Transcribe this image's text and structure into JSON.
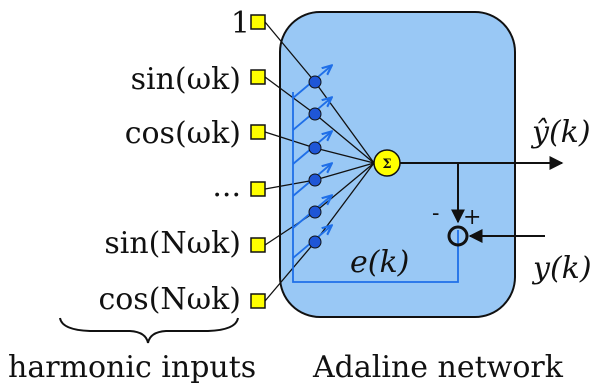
{
  "inputs": [
    {
      "label": "1"
    },
    {
      "label": "sin(ωk)"
    },
    {
      "label": "cos(ωk)"
    },
    {
      "label": "..."
    },
    {
      "label": "sin(Nωk)"
    },
    {
      "label": "cos(Nωk)"
    }
  ],
  "network": {
    "sum_symbol": "Σ",
    "output_label": "ŷ(k)",
    "target_label": "y(k)",
    "error_label": "e(k)",
    "minus_sign": "-",
    "plus_sign": "+"
  },
  "captions": {
    "inputs_caption": "harmonic inputs",
    "network_caption": "Adaline network"
  },
  "colors": {
    "box_fill": "#99c8f5",
    "box_stroke": "#111111",
    "input_square": "#ffff00",
    "sum_node": "#ffff00",
    "weight_node": "#1f56d6",
    "adapt_arrow": "#1f6fe8",
    "feedback_line": "#1f6fe8"
  }
}
